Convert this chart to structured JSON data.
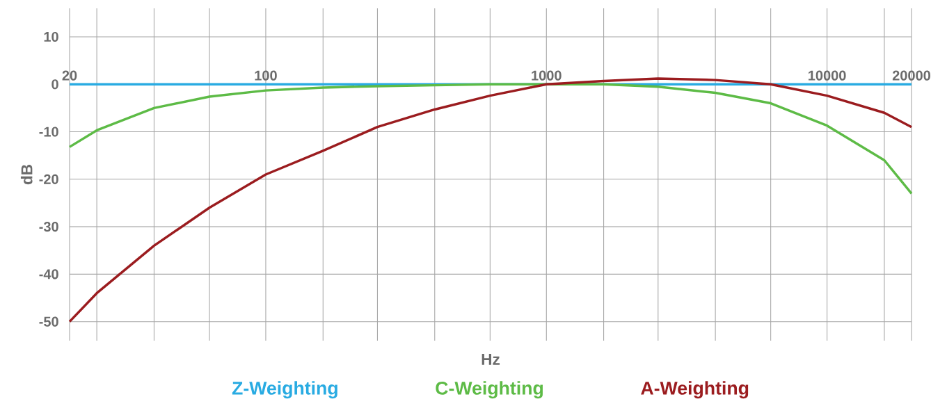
{
  "chart_data": {
    "type": "line",
    "xlabel": "Hz",
    "ylabel": "dB",
    "log": "x",
    "x": [
      20,
      25,
      40,
      63,
      100,
      160,
      250,
      400,
      630,
      1000,
      1600,
      2500,
      4000,
      6300,
      10000,
      16000,
      20000
    ],
    "series": [
      {
        "name": "Z-Weighting",
        "color": "#29abe2",
        "x": [
          20,
          20000
        ],
        "values": [
          0,
          0
        ]
      },
      {
        "name": "C-Weighting",
        "color": "#5dbb46",
        "values": [
          -13.2,
          -9.7,
          -5,
          -2.6,
          -1.3,
          -0.7,
          -0.4,
          -0.2,
          0,
          0,
          0,
          -0.5,
          -1.8,
          -4,
          -8.7,
          -16,
          -23
        ]
      },
      {
        "name": "A-Weighting",
        "color": "#9b1c1f",
        "values": [
          -50,
          -44,
          -34,
          -26,
          -19,
          -14,
          -9,
          -5.3,
          -2.4,
          0,
          0.7,
          1.2,
          0.9,
          0,
          -2.4,
          -6,
          -9
        ]
      }
    ],
    "xlim": [
      20,
      20000
    ],
    "ylim": [
      -54,
      16
    ],
    "xticks": [
      20,
      {
        "value": 25,
        "label": null
      },
      {
        "value": 40,
        "label": null
      },
      {
        "value": 63,
        "label": null
      },
      100,
      {
        "value": 160,
        "label": null
      },
      {
        "value": 250,
        "label": null
      },
      {
        "value": 400,
        "label": null
      },
      {
        "value": 630,
        "label": null
      },
      1000,
      {
        "value": 1600,
        "label": null
      },
      {
        "value": 2500,
        "label": null
      },
      {
        "value": 4000,
        "label": null
      },
      {
        "value": 6300,
        "label": null
      },
      10000,
      {
        "value": 16000,
        "label": null
      },
      20000
    ],
    "yticks": [
      -50,
      -40,
      -30,
      -20,
      -10,
      0,
      10
    ],
    "grid": true,
    "legend": "bottom",
    "marker": "none",
    "line_style": "solid"
  }
}
